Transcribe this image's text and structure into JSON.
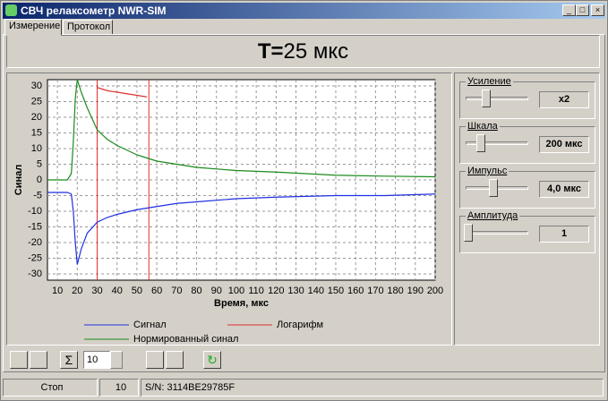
{
  "window": {
    "title": "СВЧ релаксометр NWR-SIM"
  },
  "tabs": [
    "Измерение",
    "Протокол"
  ],
  "header": {
    "label": "T=",
    "value": "25 мкс"
  },
  "chart_data": {
    "type": "line",
    "x_label": "Время, мкс",
    "y_label": "Синал",
    "x": [
      5,
      10,
      15,
      17,
      18,
      19,
      20,
      22,
      25,
      30,
      35,
      40,
      50,
      55,
      60,
      70,
      80,
      100,
      120,
      150,
      175,
      200
    ],
    "series": [
      {
        "name": "Сигнал",
        "color": "#1f2fe0",
        "values": [
          -4,
          -4,
          -4,
          -4.5,
          -10,
          -20,
          -27,
          -22,
          -17,
          -13.5,
          -12,
          -11,
          -9.5,
          -9,
          -8.5,
          -7.5,
          -7,
          -6,
          -5.5,
          -5,
          -5,
          -4.5
        ]
      },
      {
        "name": "Логарифм",
        "color": "#e03030",
        "values": [
          null,
          null,
          null,
          null,
          null,
          null,
          null,
          null,
          null,
          29.5,
          28.5,
          28,
          27,
          26.5,
          null,
          null,
          null,
          null,
          null,
          null,
          null,
          null
        ]
      },
      {
        "name": "Нормированный синал",
        "color": "#1a8a1a",
        "values": [
          0,
          0,
          0,
          2,
          12,
          26,
          32,
          28,
          23,
          16,
          13,
          11,
          8,
          7,
          6,
          5,
          4,
          3,
          2.5,
          1.5,
          1.2,
          1
        ]
      }
    ],
    "vlines": [
      30,
      56
    ],
    "vline_color": "#e03030",
    "xlim": [
      5,
      200
    ],
    "ylim": [
      -32,
      32
    ],
    "xticks": [
      10,
      20,
      30,
      40,
      50,
      60,
      70,
      80,
      90,
      100,
      110,
      120,
      130,
      140,
      150,
      160,
      170,
      180,
      190,
      200
    ],
    "yticks": [
      -30,
      -25,
      -20,
      -15,
      -10,
      -5,
      0,
      5,
      10,
      15,
      20,
      25,
      30
    ],
    "grid": true
  },
  "controls": [
    {
      "label": "Усиление",
      "value": "x2"
    },
    {
      "label": "Шкала",
      "value": "200 мкс"
    },
    {
      "label": "Импульс",
      "value": "4,0 мкс"
    },
    {
      "label": "Амплитуда",
      "value": "1"
    }
  ],
  "toolbar": {
    "count": "10"
  },
  "status": [
    "Стоп",
    "10",
    "S/N: 3114BE29785F"
  ]
}
